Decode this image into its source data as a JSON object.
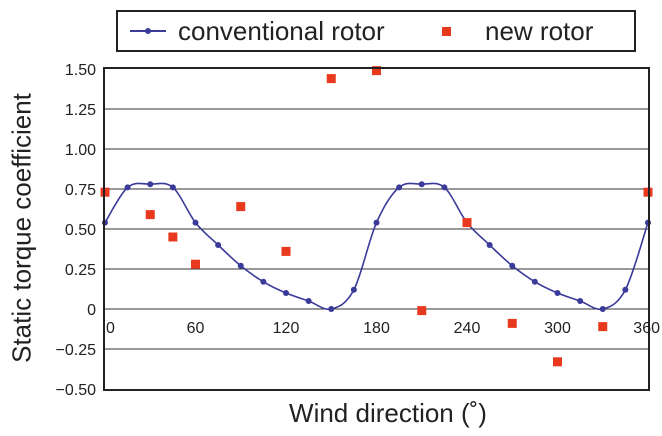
{
  "chart_data": {
    "type": "line",
    "xlabel": "Wind direction (˚)",
    "ylabel": "Static torque coefficient",
    "xlim": [
      0,
      360
    ],
    "ylim": [
      -0.5,
      1.5
    ],
    "x_ticks": [
      "0",
      "60",
      "120",
      "180",
      "240",
      "300",
      "360"
    ],
    "y_ticks": [
      "1.50",
      "1.25",
      "1.00",
      "0.75",
      "0.50",
      "0.25",
      "0",
      "−0.25",
      "−0.50"
    ],
    "y_tick_values": [
      1.5,
      1.25,
      1.0,
      0.75,
      0.5,
      0.25,
      0,
      -0.25,
      -0.5
    ],
    "x_tick_values": [
      0,
      60,
      120,
      180,
      240,
      300,
      360
    ],
    "grid": "horizontal",
    "legend_position": "top",
    "series": [
      {
        "name": "conventional rotor",
        "style": "line-with-markers",
        "color": "#3a3a9a",
        "x": [
          0,
          15,
          30,
          45,
          60,
          75,
          90,
          105,
          120,
          135,
          150,
          165,
          180,
          195,
          210,
          225,
          240,
          255,
          270,
          285,
          300,
          315,
          330,
          345,
          360
        ],
        "y": [
          0.54,
          0.76,
          0.78,
          0.76,
          0.54,
          0.4,
          0.27,
          0.17,
          0.1,
          0.05,
          0.0,
          0.12,
          0.54,
          0.76,
          0.78,
          0.76,
          0.54,
          0.4,
          0.27,
          0.17,
          0.1,
          0.05,
          0.0,
          0.12,
          0.54
        ]
      },
      {
        "name": "new rotor",
        "style": "markers",
        "color": "#e8381e",
        "x": [
          0,
          30,
          45,
          60,
          90,
          120,
          150,
          180,
          210,
          240,
          270,
          300,
          330,
          360
        ],
        "y": [
          0.73,
          0.59,
          0.45,
          0.28,
          0.64,
          0.36,
          1.44,
          1.49,
          -0.01,
          0.54,
          -0.09,
          -0.33,
          -0.11,
          0.73
        ]
      }
    ]
  }
}
